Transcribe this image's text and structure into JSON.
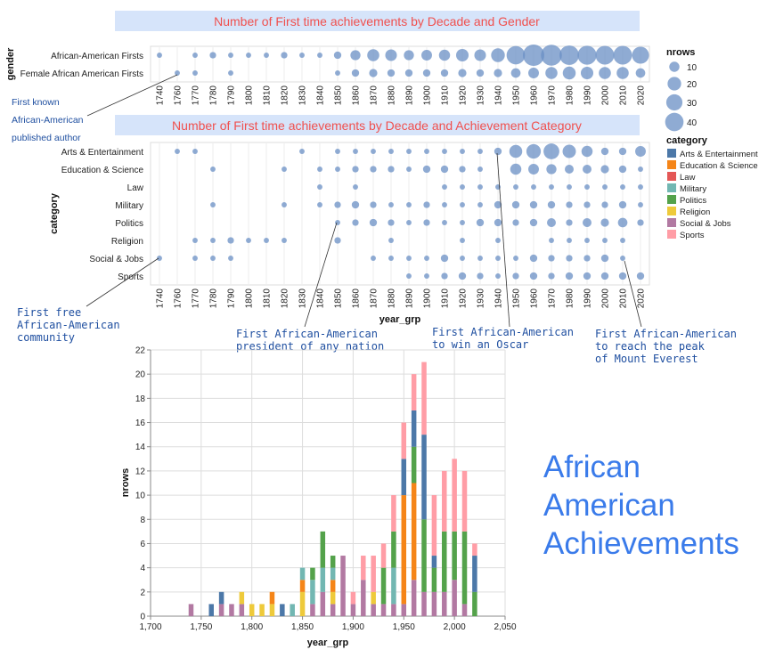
{
  "colors": {
    "title_bg": "#d6e4fa",
    "title_text": "#f0504e",
    "point": "#6a8fc4",
    "annotation": "#1f4fa0",
    "big_title": "#3a7bea",
    "grid": "#dddddd"
  },
  "big_title": [
    "African",
    "American",
    "Achievements"
  ],
  "annotations": {
    "author": [
      "First known",
      "African-American",
      "published author"
    ],
    "community": [
      "First free",
      "African-American",
      "community"
    ],
    "president": [
      "First African-American",
      "president of any nation"
    ],
    "oscar": [
      "First African-American",
      "to win an Oscar"
    ],
    "everest": [
      "First African-American",
      "to reach the peak",
      "of Mount Everest"
    ]
  },
  "chart_data": [
    {
      "type": "scatter",
      "title": "Number of First time achievements by Decade and Gender",
      "ylabel": "gender",
      "x": [
        "1740",
        "1760",
        "1770",
        "1780",
        "1790",
        "1800",
        "1810",
        "1820",
        "1830",
        "1840",
        "1850",
        "1860",
        "1870",
        "1880",
        "1890",
        "1900",
        "1910",
        "1920",
        "1930",
        "1940",
        "1950",
        "1960",
        "1970",
        "1980",
        "1990",
        "2000",
        "2010",
        "2020"
      ],
      "rows": [
        "African-American Firsts",
        "Female African American Firsts"
      ],
      "size_legend": {
        "title": "nrows",
        "values": [
          10,
          20,
          30,
          40
        ]
      },
      "series": [
        {
          "name": "African-American Firsts",
          "values": [
            1,
            0,
            1,
            2,
            1,
            1,
            1,
            2,
            1,
            1,
            3,
            7,
            11,
            10,
            7,
            8,
            9,
            12,
            10,
            15,
            30,
            45,
            40,
            34,
            32,
            31,
            31,
            25
          ]
        },
        {
          "name": "Female African American Firsts",
          "values": [
            0,
            1,
            1,
            0,
            1,
            0,
            0,
            0,
            0,
            0,
            1,
            3,
            4,
            3,
            3,
            3,
            3,
            4,
            3,
            4,
            6,
            8,
            11,
            13,
            12,
            11,
            11,
            6
          ]
        }
      ]
    },
    {
      "type": "scatter",
      "title": "Number of First time achievements by Decade and Achievement Category",
      "xlabel": "year_grp",
      "ylabel": "category",
      "x": [
        "1740",
        "1760",
        "1770",
        "1780",
        "1790",
        "1800",
        "1810",
        "1820",
        "1830",
        "1840",
        "1850",
        "1860",
        "1870",
        "1880",
        "1890",
        "1900",
        "1910",
        "1920",
        "1930",
        "1940",
        "1950",
        "1960",
        "1970",
        "1980",
        "1990",
        "2000",
        "2010",
        "2020"
      ],
      "rows": [
        "Arts & Entertainment",
        "Education & Science",
        "Law",
        "Military",
        "Politics",
        "Religion",
        "Social & Jobs",
        "Sports"
      ],
      "legend": {
        "title": "category",
        "items": [
          {
            "name": "Arts & Entertainment",
            "color": "#4c78a8"
          },
          {
            "name": "Education & Science",
            "color": "#f58518"
          },
          {
            "name": "Law",
            "color": "#e45756"
          },
          {
            "name": "Military",
            "color": "#72b7b2"
          },
          {
            "name": "Politics",
            "color": "#54a24b"
          },
          {
            "name": "Religion",
            "color": "#eeca3b"
          },
          {
            "name": "Social & Jobs",
            "color": "#b279a2"
          },
          {
            "name": "Sports",
            "color": "#ff9da6"
          }
        ]
      },
      "series": [
        {
          "name": "Arts & Entertainment",
          "values": [
            0,
            1,
            1,
            0,
            0,
            0,
            0,
            0,
            1,
            0,
            1,
            1,
            1,
            1,
            1,
            1,
            1,
            1,
            1,
            3,
            13,
            17,
            21,
            14,
            9,
            3,
            3,
            8
          ]
        },
        {
          "name": "Education & Science",
          "values": [
            0,
            0,
            0,
            1,
            0,
            0,
            0,
            1,
            0,
            1,
            1,
            2,
            2,
            2,
            1,
            3,
            3,
            2,
            1,
            0,
            9,
            8,
            7,
            5,
            5,
            4,
            3,
            1
          ]
        },
        {
          "name": "Law",
          "values": [
            0,
            0,
            0,
            0,
            0,
            0,
            0,
            0,
            0,
            1,
            0,
            1,
            0,
            0,
            0,
            0,
            1,
            1,
            1,
            1,
            1,
            1,
            1,
            1,
            1,
            1,
            1,
            1
          ]
        },
        {
          "name": "Military",
          "values": [
            0,
            0,
            0,
            1,
            0,
            0,
            0,
            1,
            0,
            1,
            2,
            3,
            2,
            1,
            1,
            2,
            1,
            1,
            1,
            3,
            3,
            3,
            3,
            2,
            2,
            2,
            3,
            1
          ]
        },
        {
          "name": "Politics",
          "values": [
            0,
            0,
            0,
            0,
            0,
            0,
            0,
            0,
            0,
            0,
            1,
            2,
            3,
            2,
            1,
            2,
            1,
            1,
            3,
            3,
            2,
            3,
            5,
            2,
            5,
            4,
            6,
            2
          ]
        },
        {
          "name": "Religion",
          "values": [
            0,
            0,
            1,
            1,
            2,
            1,
            1,
            1,
            0,
            0,
            2,
            0,
            0,
            1,
            0,
            0,
            0,
            1,
            0,
            1,
            0,
            0,
            1,
            1,
            1,
            1,
            1,
            0
          ]
        },
        {
          "name": "Social & Jobs",
          "values": [
            1,
            0,
            1,
            1,
            1,
            0,
            0,
            0,
            0,
            0,
            0,
            0,
            1,
            1,
            1,
            1,
            3,
            1,
            1,
            1,
            1,
            3,
            2,
            2,
            2,
            3,
            1,
            0
          ]
        },
        {
          "name": "Sports",
          "values": [
            0,
            0,
            0,
            0,
            0,
            0,
            0,
            0,
            0,
            0,
            0,
            0,
            0,
            0,
            1,
            1,
            2,
            3,
            2,
            1,
            2,
            3,
            2,
            3,
            3,
            3,
            3,
            3
          ]
        }
      ]
    },
    {
      "type": "bar",
      "stacked": true,
      "xlabel": "year_grp",
      "ylabel": "nrows",
      "xlim": [
        1700,
        2050
      ],
      "ylim": [
        0,
        22
      ],
      "x_ticks": [
        "1,700",
        "1,750",
        "1,800",
        "1,850",
        "1,900",
        "1,950",
        "2,000",
        "2,050"
      ],
      "y_ticks": [
        0,
        2,
        4,
        6,
        8,
        10,
        12,
        14,
        16,
        18,
        20,
        22
      ],
      "x": [
        1740,
        1760,
        1770,
        1780,
        1790,
        1800,
        1810,
        1820,
        1830,
        1840,
        1850,
        1860,
        1870,
        1880,
        1890,
        1900,
        1910,
        1920,
        1930,
        1940,
        1950,
        1960,
        1970,
        1980,
        1990,
        2000,
        2010,
        2020
      ],
      "series": [
        {
          "name": "Social & Jobs",
          "values": [
            1,
            0,
            1,
            1,
            1,
            0,
            0,
            0,
            0,
            0,
            0,
            1,
            2,
            1,
            5,
            1,
            3,
            1,
            1,
            1,
            1,
            3,
            2,
            2,
            2,
            3,
            1,
            0
          ]
        },
        {
          "name": "Religion",
          "values": [
            0,
            0,
            0,
            0,
            1,
            1,
            1,
            1,
            0,
            0,
            2,
            0,
            0,
            1,
            0,
            0,
            0,
            1,
            0,
            0,
            0,
            0,
            0,
            0,
            0,
            0,
            0,
            0
          ]
        },
        {
          "name": "Education & Science",
          "values": [
            0,
            0,
            0,
            0,
            0,
            0,
            0,
            1,
            0,
            0,
            1,
            0,
            0,
            1,
            0,
            0,
            0,
            0,
            0,
            0,
            9,
            8,
            0,
            0,
            0,
            0,
            0,
            0
          ]
        },
        {
          "name": "Military",
          "values": [
            0,
            0,
            0,
            0,
            0,
            0,
            0,
            0,
            0,
            1,
            1,
            2,
            2,
            1,
            0,
            0,
            0,
            0,
            0,
            3,
            0,
            0,
            0,
            0,
            0,
            0,
            0,
            0
          ]
        },
        {
          "name": "Politics",
          "values": [
            0,
            0,
            0,
            0,
            0,
            0,
            0,
            0,
            0,
            0,
            0,
            1,
            3,
            1,
            0,
            0,
            0,
            0,
            3,
            3,
            0,
            3,
            6,
            2,
            5,
            4,
            6,
            2
          ]
        },
        {
          "name": "Arts & Entertainment",
          "values": [
            0,
            1,
            1,
            0,
            0,
            0,
            0,
            0,
            1,
            0,
            0,
            0,
            0,
            0,
            0,
            0,
            0,
            0,
            0,
            0,
            3,
            3,
            7,
            1,
            0,
            0,
            0,
            3
          ]
        },
        {
          "name": "Sports",
          "values": [
            0,
            0,
            0,
            0,
            0,
            0,
            0,
            0,
            0,
            0,
            0,
            0,
            0,
            0,
            0,
            1,
            2,
            3,
            2,
            3,
            3,
            3,
            6,
            5,
            5,
            6,
            5,
            1
          ]
        }
      ]
    }
  ]
}
